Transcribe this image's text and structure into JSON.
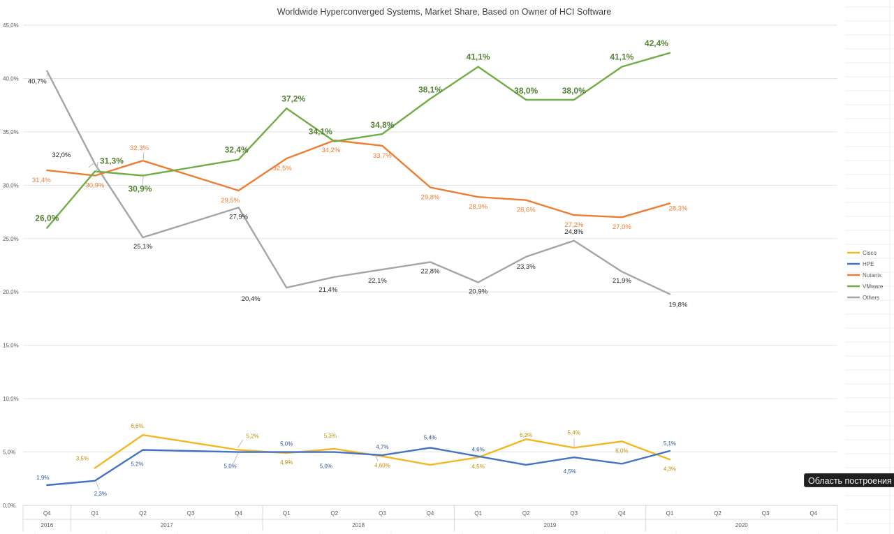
{
  "tooltip": {
    "text": "Область построения"
  },
  "chart_data": {
    "type": "line",
    "title": "Worldwide Hyperconverged Systems, Market Share, Based on Owner of HCI Software",
    "xlabel": "",
    "ylabel": "",
    "ylim": [
      0,
      45
    ],
    "yticks": [
      "0,0%",
      "5,0%",
      "10,0%",
      "15,0%",
      "20,0%",
      "25,0%",
      "30,0%",
      "35,0%",
      "40,0%",
      "45,0%"
    ],
    "grid": true,
    "legend_position": "right",
    "categories": [
      "Q4",
      "Q1",
      "Q2",
      "Q3",
      "Q4",
      "Q1",
      "Q2",
      "Q3",
      "Q4",
      "Q1",
      "Q2",
      "Q3",
      "Q4",
      "Q1",
      "Q2",
      "Q3",
      "Q4"
    ],
    "year_groups": [
      {
        "label": "2016",
        "count": 1
      },
      {
        "label": "2017",
        "count": 4
      },
      {
        "label": "2018",
        "count": 4
      },
      {
        "label": "2019",
        "count": 4
      },
      {
        "label": "2020",
        "count": 4
      }
    ],
    "series": [
      {
        "name": "Cisco",
        "color": "#F4B723",
        "label_color": "#BF8F00",
        "values": [
          null,
          3.5,
          6.6,
          null,
          5.2,
          4.9,
          5.3,
          4.6,
          3.8,
          4.5,
          6.2,
          5.4,
          6.0,
          4.3,
          null,
          null,
          null
        ],
        "labels": [
          null,
          "3,5%",
          "6,6%",
          null,
          "5,2%",
          "4,9%",
          "5,3%",
          "4,60%",
          null,
          "4,5%",
          "6,2%",
          "5,4%",
          "6,0%",
          "4,3%",
          null,
          null,
          null
        ]
      },
      {
        "name": "HPE",
        "color": "#4472C4",
        "label_color": "#2F5597",
        "values": [
          1.9,
          2.3,
          5.2,
          null,
          5.0,
          5.0,
          5.0,
          4.7,
          5.4,
          4.6,
          3.8,
          4.5,
          3.9,
          5.1,
          null,
          null,
          null
        ],
        "labels": [
          "1,9%",
          "2,3%",
          "5,2%",
          null,
          "5,0%",
          "5,0%",
          "5,0%",
          "4,7%",
          "5,4%",
          "4,6%",
          null,
          "4,5%",
          null,
          "5,1%",
          null,
          null,
          null
        ]
      },
      {
        "name": "Nutanix",
        "color": "#ED7D31",
        "label_color": "#ED7D31",
        "values": [
          31.4,
          30.9,
          32.3,
          null,
          29.5,
          32.5,
          34.2,
          33.7,
          29.8,
          28.9,
          28.6,
          27.2,
          27.0,
          28.3,
          null,
          null,
          null
        ],
        "labels": [
          "31,4%",
          "30,9%",
          "32,3%",
          null,
          "29,5%",
          "32,5%",
          "34,2%",
          "33,7%",
          "29,8%",
          "28,9%",
          "28,6%",
          "27,2%",
          "27,0%",
          "28,3%",
          null,
          null,
          null
        ]
      },
      {
        "name": "VMware",
        "color": "#70AD47",
        "label_color": "#548235",
        "values": [
          26.0,
          31.3,
          30.9,
          null,
          32.4,
          37.2,
          34.1,
          34.8,
          38.1,
          41.1,
          38.0,
          38.0,
          41.1,
          42.4,
          null,
          null,
          null
        ],
        "labels": [
          "26,0%",
          "31,3%",
          "30,9%",
          null,
          "32,4%",
          "37,2%",
          "34,1%",
          "34,8%",
          "38,1%",
          "41,1%",
          "38,0%",
          "38,0%",
          "41,1%",
          "42,4%",
          null,
          null,
          null
        ]
      },
      {
        "name": "Others",
        "color": "#A5A5A5",
        "label_color": "#262626",
        "values": [
          40.7,
          32.0,
          25.1,
          null,
          27.9,
          20.4,
          21.4,
          22.1,
          22.8,
          20.9,
          23.3,
          24.8,
          21.9,
          19.8,
          null,
          null,
          null
        ],
        "labels": [
          "40,7%",
          "32,0%",
          "25,1%",
          null,
          "27,9%",
          "20,4%",
          "21,4%",
          "22,1%",
          "22,8%",
          "20,9%",
          "23,3%",
          "24,8%",
          "21,9%",
          "19,8%",
          null,
          null,
          null
        ]
      }
    ]
  }
}
